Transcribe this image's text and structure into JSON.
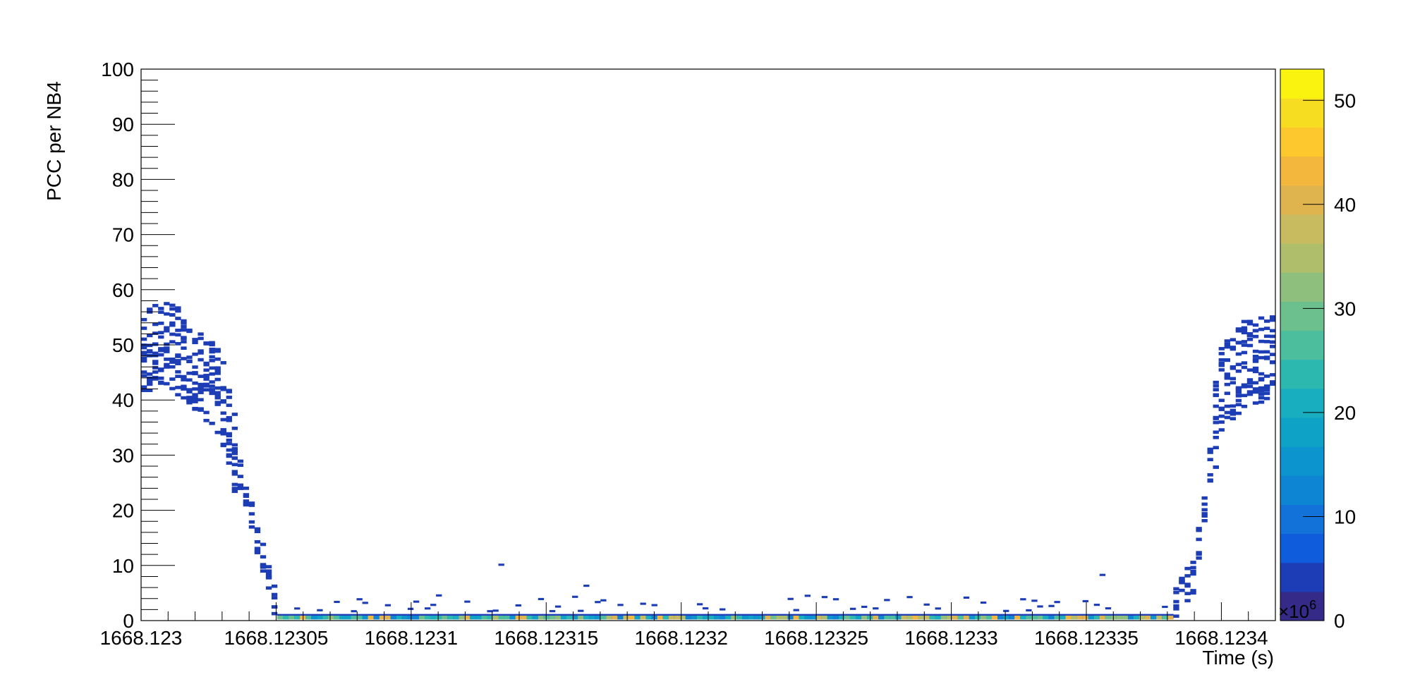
{
  "chart_data": {
    "type": "heatmap",
    "title": "",
    "xlabel": "Time (s)",
    "ylabel": "PCC per NB4",
    "xlim": [
      1668.123,
      1668.12342
    ],
    "ylim": [
      0,
      100
    ],
    "x_ticks": [
      {
        "value": 1668.123,
        "label": "1668.123"
      },
      {
        "value": 1668.12305,
        "label": "1668.12305"
      },
      {
        "value": 1668.1231,
        "label": "1668.1231"
      },
      {
        "value": 1668.12315,
        "label": "1668.12315"
      },
      {
        "value": 1668.1232,
        "label": "1668.1232"
      },
      {
        "value": 1668.12325,
        "label": "1668.12325"
      },
      {
        "value": 1668.1233,
        "label": "1668.1233"
      },
      {
        "value": 1668.12335,
        "label": "1668.12335"
      },
      {
        "value": 1668.1234,
        "label": "1668.1234"
      }
    ],
    "y_ticks": [
      {
        "value": 0,
        "label": "0"
      },
      {
        "value": 10,
        "label": "10"
      },
      {
        "value": 20,
        "label": "20"
      },
      {
        "value": 30,
        "label": "30"
      },
      {
        "value": 40,
        "label": "40"
      },
      {
        "value": 50,
        "label": "50"
      },
      {
        "value": 60,
        "label": "60"
      },
      {
        "value": 70,
        "label": "70"
      },
      {
        "value": 80,
        "label": "80"
      },
      {
        "value": 90,
        "label": "90"
      },
      {
        "value": 100,
        "label": "100"
      }
    ],
    "colorbar": {
      "range": [
        0,
        53
      ],
      "ticks": [
        {
          "value": 0,
          "label": "0"
        },
        {
          "value": 10,
          "label": "10"
        },
        {
          "value": 20,
          "label": "20"
        },
        {
          "value": 30,
          "label": "30"
        },
        {
          "value": 40,
          "label": "40"
        },
        {
          "value": 50,
          "label": "50"
        }
      ],
      "multiplier_label": "×10",
      "multiplier_exponent": "6",
      "palette": [
        "#352a87",
        "#1c3db5",
        "#0f5cdd",
        "#1272d9",
        "#0d85d3",
        "#0b94cd",
        "#0ea3c6",
        "#18aebf",
        "#2db8af",
        "#4cbe9d",
        "#6cc08d",
        "#8fbf7c",
        "#aebe6b",
        "#c8ba5f",
        "#dfb44f",
        "#f2b73c",
        "#fcc82d",
        "#f6dd22",
        "#f9f30f"
      ]
    },
    "series": [
      {
        "name": "",
        "x": [
          1668.123,
          1668.12301,
          1668.12302,
          1668.12303,
          1668.12304,
          1668.12305,
          1668.1231,
          1668.12315,
          1668.1232,
          1668.12325,
          1668.1233,
          1668.12335,
          1668.12338,
          1668.12339,
          1668.1234,
          1668.12341,
          1668.12342
        ],
        "y": [
          48,
          50,
          46,
          40,
          20,
          2,
          1.5,
          1,
          1,
          1,
          1,
          1,
          1,
          8,
          42,
          47,
          47
        ]
      }
    ]
  }
}
